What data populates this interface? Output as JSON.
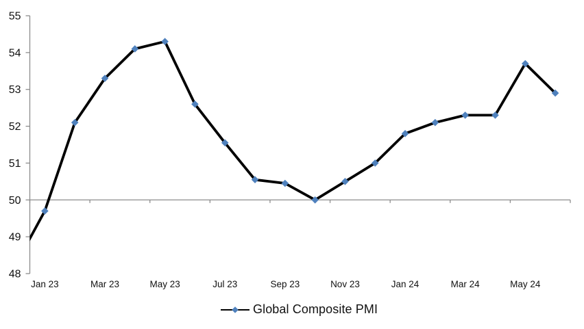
{
  "chart_data": {
    "type": "line",
    "title": "",
    "categories": [
      "Dec 22",
      "Jan 23",
      "Feb 23",
      "Mar 23",
      "Apr 23",
      "May 23",
      "Jun 23",
      "Jul 23",
      "Aug 23",
      "Sep 23",
      "Oct 23",
      "Nov 23",
      "Dec 23",
      "Jan 24",
      "Feb 24",
      "Mar 24",
      "Apr 24",
      "May 24",
      "Jun 24"
    ],
    "series": [
      {
        "name": "Global Composite PMI",
        "values": [
          48.2,
          49.7,
          52.1,
          53.3,
          54.1,
          54.3,
          52.6,
          51.55,
          50.55,
          50.45,
          50.0,
          50.5,
          51.0,
          51.8,
          52.1,
          52.3,
          52.3,
          53.7,
          52.9
        ],
        "marker": "diamond"
      }
    ],
    "first_category_clipped": true,
    "x_tick_labels": [
      "Jan 23",
      "Mar 23",
      "May 23",
      "Jul 23",
      "Sep 23",
      "Nov 23",
      "Jan 24",
      "Mar 24",
      "May 24"
    ],
    "x_label_interval": 2,
    "y_tick_labels": [
      "48",
      "49",
      "50",
      "51",
      "52",
      "53",
      "54",
      "55"
    ],
    "ylim": [
      48,
      55
    ],
    "x_axis_crosses_at": 50,
    "gridlines": "none (category axis line drawn at value 50 with tick marks every 2 months)",
    "legend": {
      "label": "Global Composite PMI",
      "position": "bottom-center"
    },
    "colors": {
      "line": "#000000",
      "marker": "#4F81BD",
      "axis": "#8C8C8C",
      "text": "#111111"
    }
  }
}
